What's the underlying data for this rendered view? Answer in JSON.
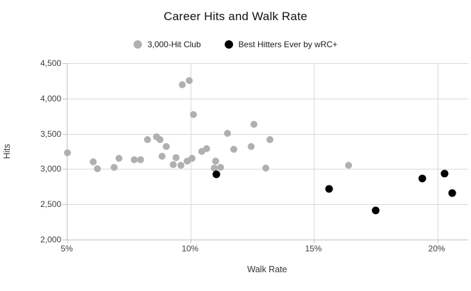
{
  "chart_data": {
    "type": "scatter",
    "title": "Career Hits and Walk Rate",
    "xlabel": "Walk Rate",
    "ylabel": "Hits",
    "xlim": [
      5,
      21.25
    ],
    "ylim": [
      2000,
      4500
    ],
    "grid": true,
    "legend_position": "top-center",
    "x_ticks": [
      {
        "value": 5,
        "label": "5%"
      },
      {
        "value": 10,
        "label": "10%"
      },
      {
        "value": 15,
        "label": "15%"
      },
      {
        "value": 20,
        "label": "20%"
      }
    ],
    "y_ticks": [
      {
        "value": 4500,
        "label": "4,500"
      },
      {
        "value": 4000,
        "label": "4,000"
      },
      {
        "value": 3500,
        "label": "3,500"
      },
      {
        "value": 3000,
        "label": "3,000"
      },
      {
        "value": 2500,
        "label": "2,500"
      },
      {
        "value": 2000,
        "label": "2,000"
      }
    ],
    "series": [
      {
        "name": "3,000-Hit Club",
        "color": "#b0b0b0",
        "marker_size": 10,
        "points": [
          [
            5.0,
            3230
          ],
          [
            6.05,
            3100
          ],
          [
            6.2,
            3000
          ],
          [
            6.9,
            3020
          ],
          [
            7.1,
            3150
          ],
          [
            7.7,
            3135
          ],
          [
            7.95,
            3135
          ],
          [
            8.25,
            3415
          ],
          [
            8.6,
            3460
          ],
          [
            8.75,
            3420
          ],
          [
            8.85,
            3185
          ],
          [
            9.0,
            3320
          ],
          [
            9.3,
            3065
          ],
          [
            9.4,
            3160
          ],
          [
            9.6,
            3055
          ],
          [
            9.65,
            4190
          ],
          [
            9.85,
            3115
          ],
          [
            9.95,
            4255
          ],
          [
            10.05,
            3150
          ],
          [
            10.1,
            3770
          ],
          [
            10.45,
            3250
          ],
          [
            10.65,
            3290
          ],
          [
            10.95,
            3010
          ],
          [
            11.0,
            3115
          ],
          [
            11.2,
            3020
          ],
          [
            11.5,
            3510
          ],
          [
            11.75,
            3280
          ],
          [
            12.45,
            3320
          ],
          [
            12.55,
            3630
          ],
          [
            13.05,
            3010
          ],
          [
            13.2,
            3420
          ],
          [
            16.4,
            3055
          ]
        ]
      },
      {
        "name": "Best Hitters Ever by wRC+",
        "color": "#000000",
        "marker_size": 11,
        "points": [
          [
            11.05,
            2930
          ],
          [
            15.6,
            2720
          ],
          [
            17.5,
            2415
          ],
          [
            19.4,
            2870
          ],
          [
            20.3,
            2935
          ],
          [
            20.6,
            2655
          ]
        ]
      }
    ]
  },
  "colors": {
    "background": "#ffffff",
    "gridline": "#d9d9d9",
    "axis_line": "#c2c2c2",
    "tick_text": "#3c3c3c",
    "title_text": "#111111"
  }
}
